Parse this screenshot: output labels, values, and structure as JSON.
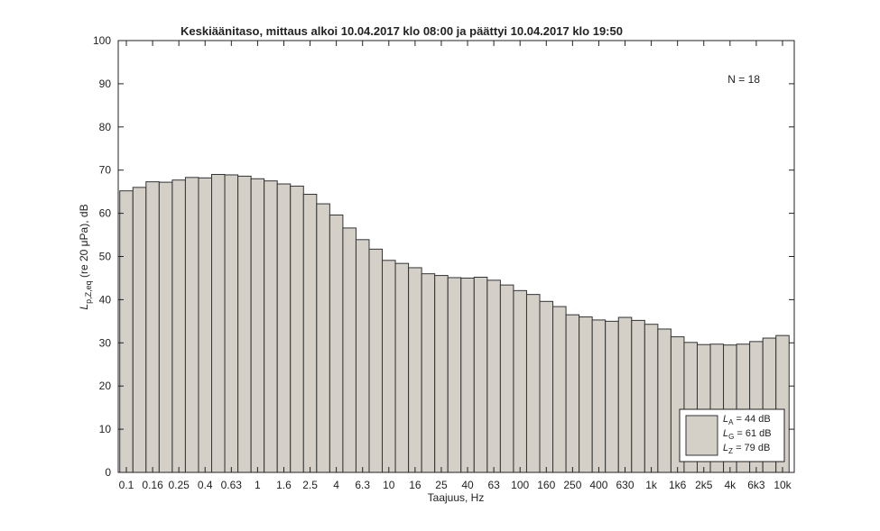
{
  "chart_data": {
    "type": "bar",
    "title": "Keskiäänitaso, mittaus alkoi 10.04.2017 klo 08:00 ja päättyi 10.04.2017 klo 19:50",
    "ylabel": {
      "symbol": "L",
      "sub": "p,Z,eq",
      "rest": " (re 20  μPa), dB"
    },
    "xlabel": "Taajuus, Hz",
    "annotation": "N = 18",
    "legend": [
      {
        "symbol": "L",
        "sub": "A",
        "text": " = 44 dB"
      },
      {
        "symbol": "L",
        "sub": "G",
        "text": " = 61 dB"
      },
      {
        "symbol": "L",
        "sub": "Z",
        "text": " = 79 dB"
      }
    ],
    "categories": [
      "0.1",
      null,
      "0.16",
      null,
      "0.25",
      null,
      "0.4",
      null,
      "0.63",
      null,
      "1",
      null,
      "1.6",
      null,
      "2.5",
      null,
      "4",
      null,
      "6.3",
      null,
      "10",
      null,
      "16",
      null,
      "25",
      null,
      "40",
      null,
      "63",
      null,
      "100",
      null,
      "160",
      null,
      "250",
      null,
      "400",
      null,
      "630",
      null,
      "1k",
      null,
      "1k6",
      null,
      "2k5",
      null,
      "4k",
      null,
      "6k3",
      null,
      "10k"
    ],
    "values": [
      65.2,
      66,
      67.3,
      67.2,
      67.7,
      68.3,
      68.2,
      69,
      68.9,
      68.6,
      68,
      67.5,
      66.8,
      66.3,
      64.4,
      62.2,
      59.6,
      56.6,
      53.9,
      51.7,
      49.1,
      48.4,
      47.4,
      46,
      45.6,
      45.1,
      45,
      45.2,
      44.5,
      43.4,
      42.1,
      41.2,
      39.6,
      38.4,
      36.5,
      36,
      35.3,
      35,
      35.9,
      35.2,
      34.3,
      33.2,
      31.4,
      30.1,
      29.6,
      29.7,
      29.5,
      29.7,
      30.3,
      31.1,
      31.7
    ],
    "color": "#d4d0c8",
    "ylim": [
      0,
      100
    ],
    "yticks": [
      0,
      10,
      20,
      30,
      40,
      50,
      60,
      70,
      80,
      90,
      100
    ]
  }
}
